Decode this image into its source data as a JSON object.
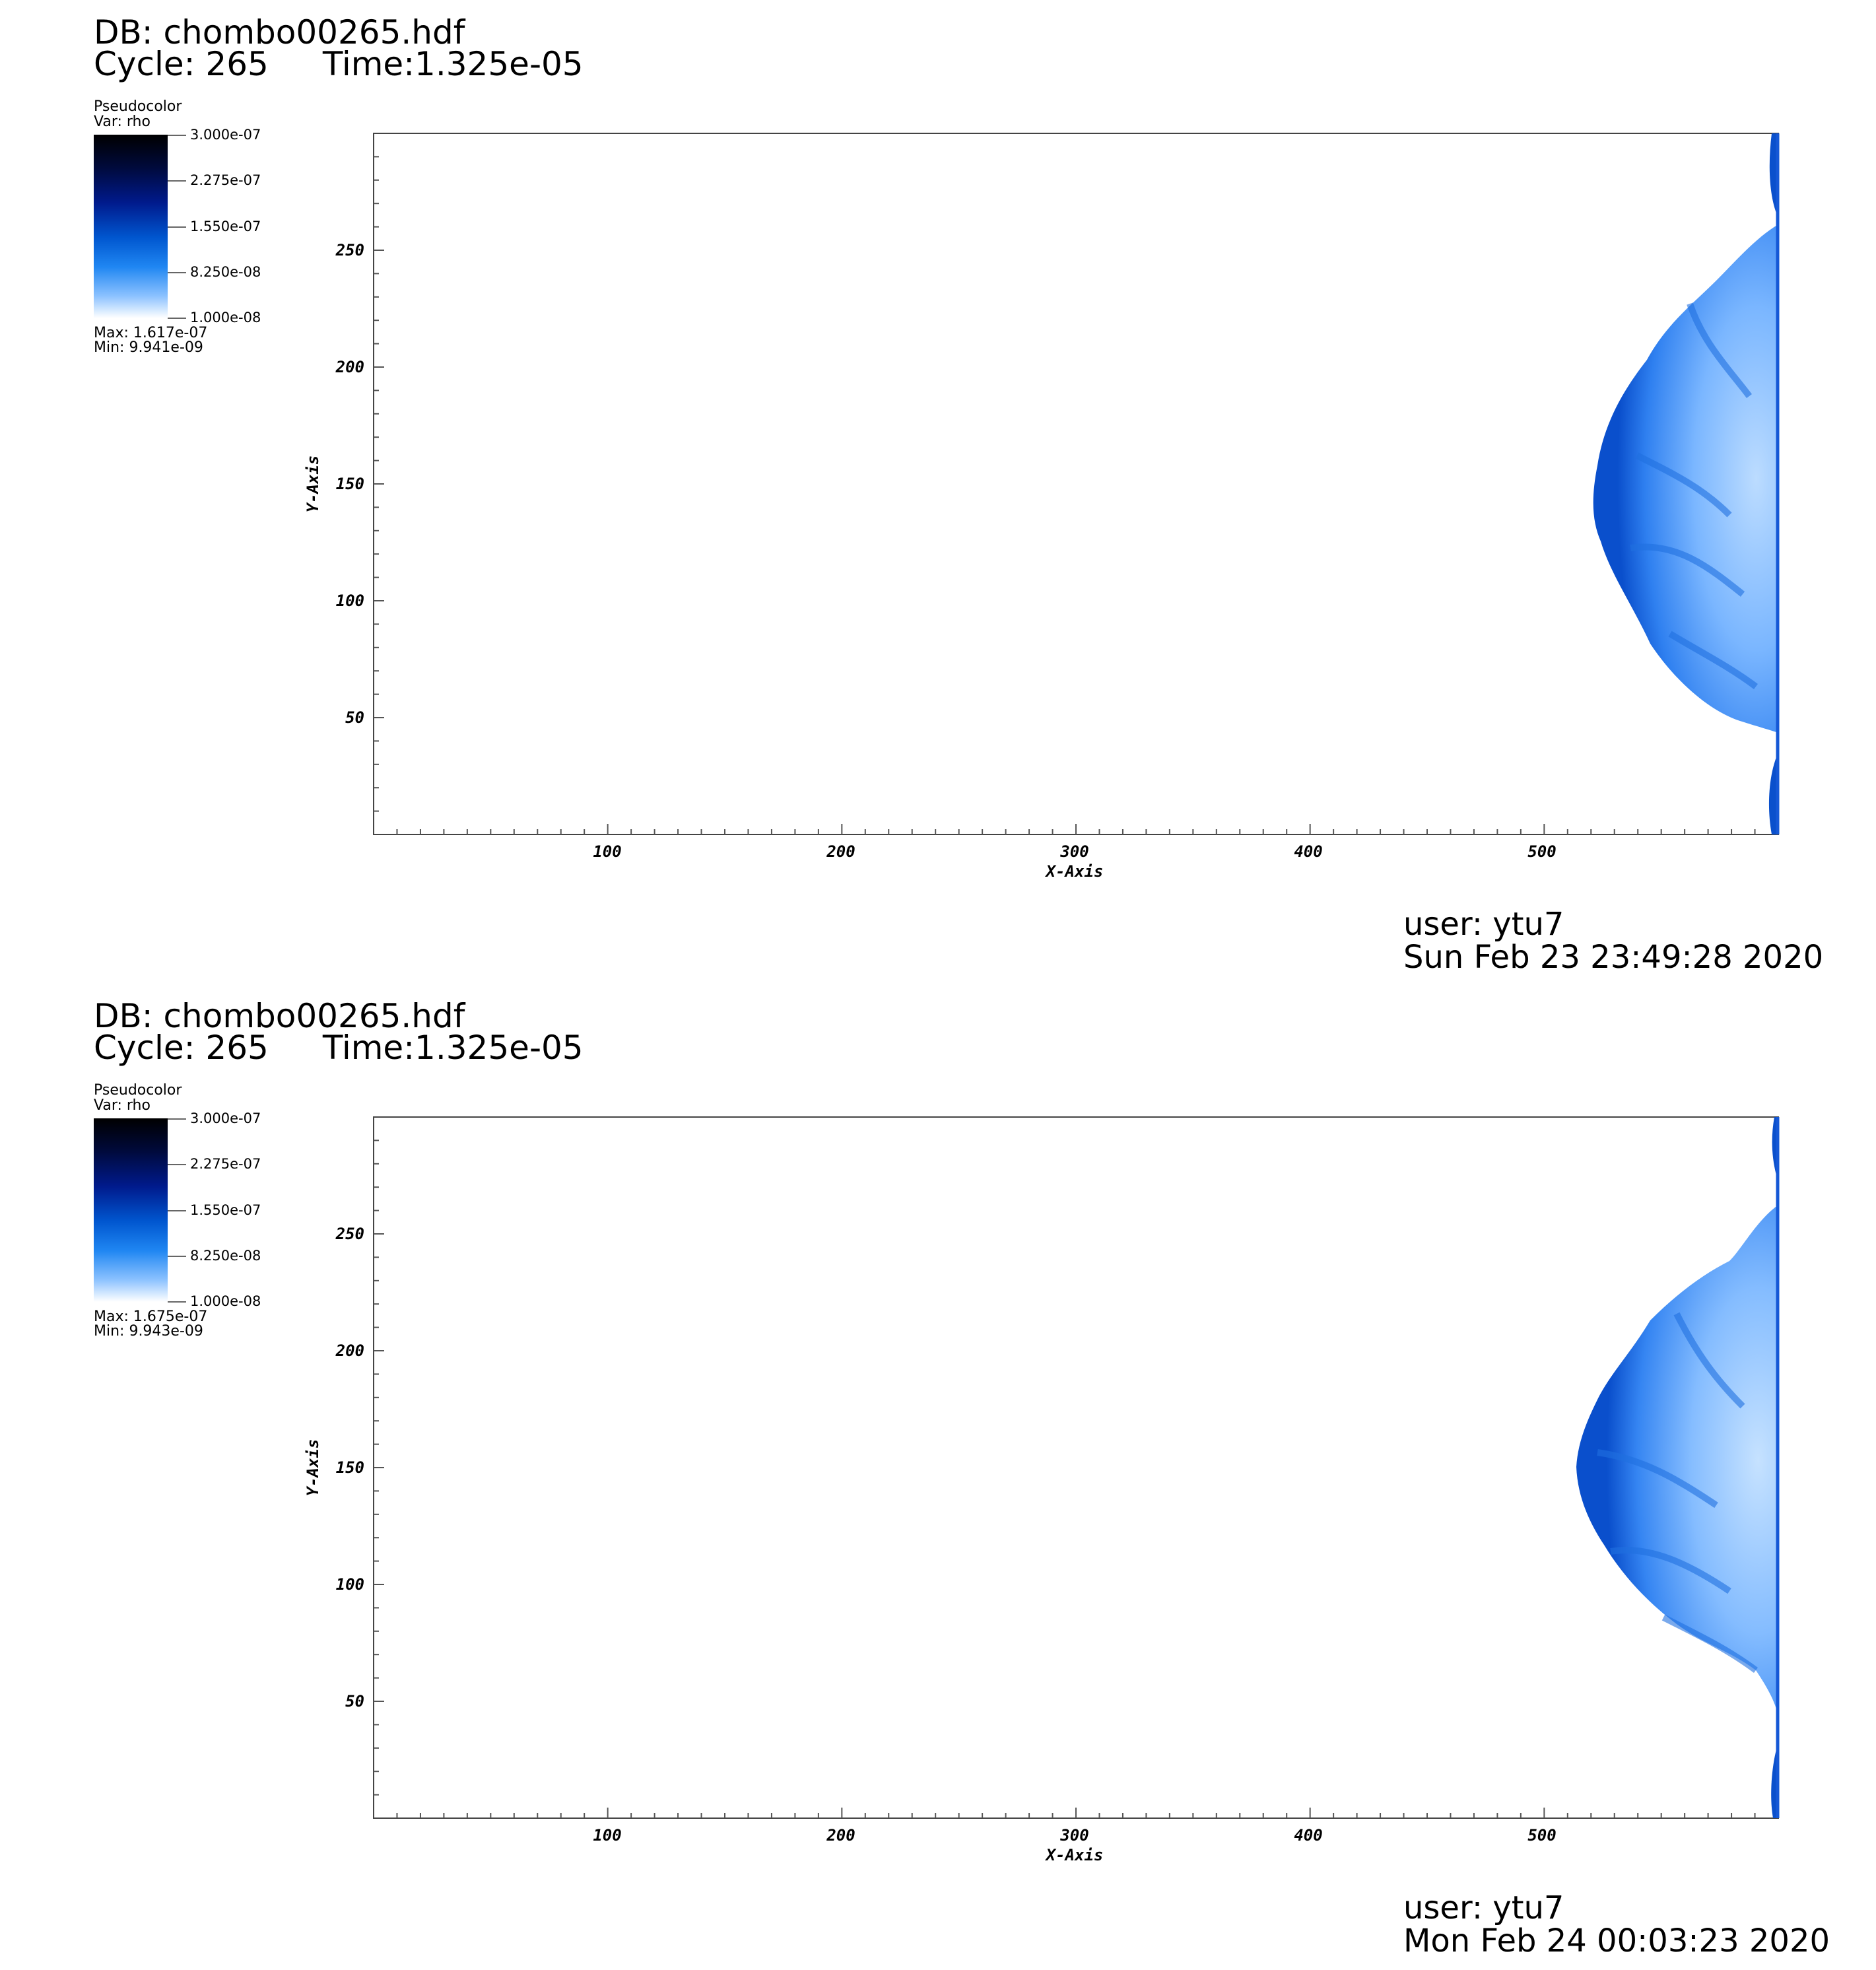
{
  "chart_data": [
    {
      "type": "heatmap",
      "db_label": "DB: chombo00265.hdf",
      "cycle_label": "Cycle: 265",
      "time_label": "Time:1.325e-05",
      "legend": {
        "title": "Pseudocolor",
        "var": "Var: rho",
        "ticks": [
          "3.000e-07",
          "2.275e-07",
          "1.550e-07",
          "8.250e-08",
          "1.000e-08"
        ],
        "max": "Max:  1.617e-07",
        "min": "Min:  9.941e-09"
      },
      "xlabel": "X-Axis",
      "ylabel": "Y-Axis",
      "xticks": [
        "100",
        "200",
        "300",
        "400",
        "500"
      ],
      "yticks": [
        "50",
        "100",
        "150",
        "200",
        "250"
      ],
      "xlim": [
        0,
        600
      ],
      "ylim": [
        0,
        300
      ],
      "user": "user: ytu7",
      "date": "Sun Feb 23 23:49:28 2020"
    },
    {
      "type": "heatmap",
      "db_label": "DB: chombo00265.hdf",
      "cycle_label": "Cycle: 265",
      "time_label": "Time:1.325e-05",
      "legend": {
        "title": "Pseudocolor",
        "var": "Var: rho",
        "ticks": [
          "3.000e-07",
          "2.275e-07",
          "1.550e-07",
          "8.250e-08",
          "1.000e-08"
        ],
        "max": "Max:  1.675e-07",
        "min": "Min:  9.943e-09"
      },
      "xlabel": "X-Axis",
      "ylabel": "Y-Axis",
      "xticks": [
        "100",
        "200",
        "300",
        "400",
        "500"
      ],
      "yticks": [
        "50",
        "100",
        "150",
        "200",
        "250"
      ],
      "xlim": [
        0,
        600
      ],
      "ylim": [
        0,
        300
      ],
      "user": "user: ytu7",
      "date": "Mon Feb 24 00:03:23 2020"
    }
  ]
}
